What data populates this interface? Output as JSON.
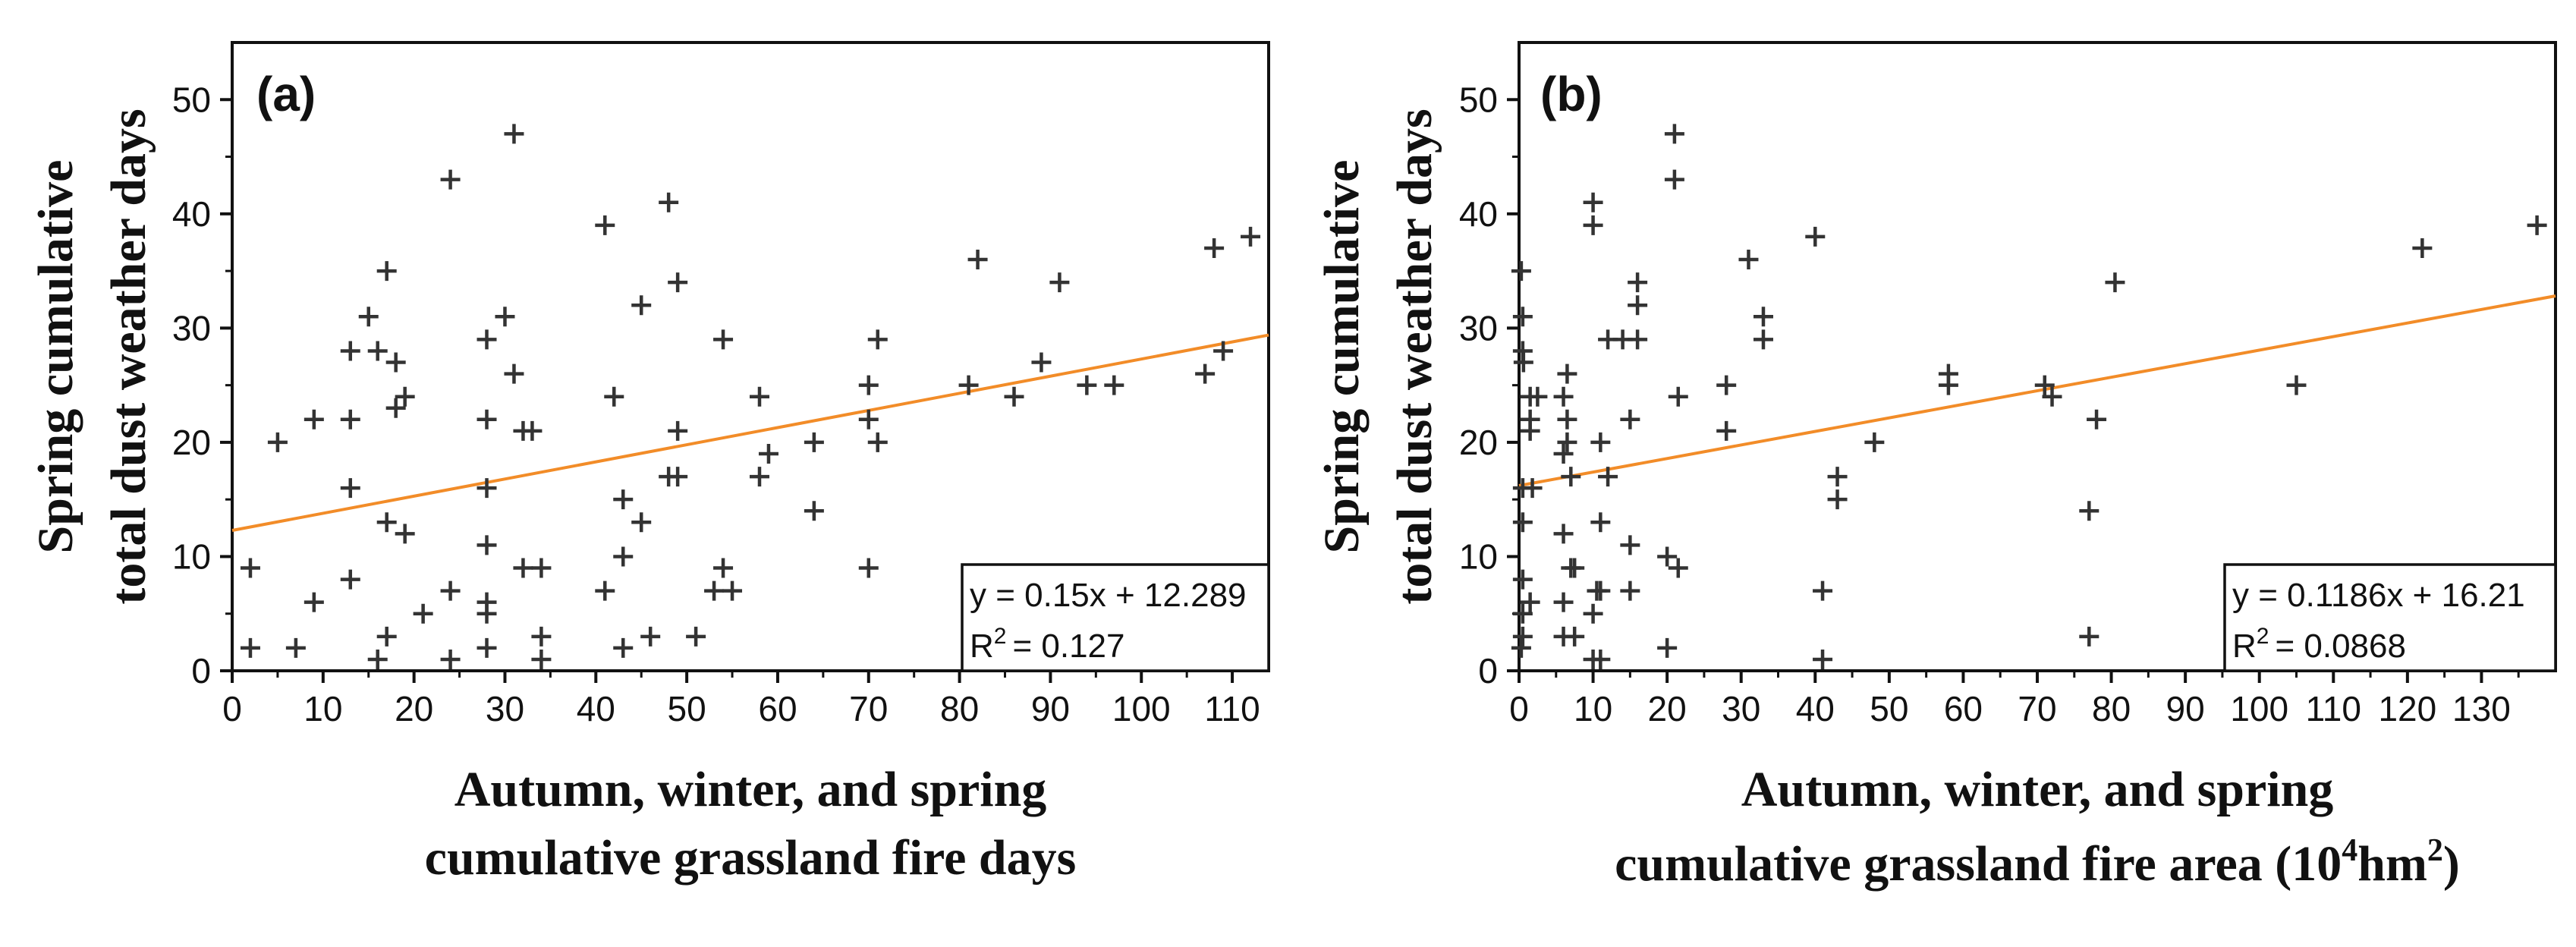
{
  "chart_data": [
    {
      "type": "scatter",
      "panel_label": "(a)",
      "title": "",
      "xlabel": [
        "Autumn, winter, and spring",
        "cumulative grassland fire days"
      ],
      "ylabel": [
        "Spring cumulative",
        "total dust weather days"
      ],
      "xlim": [
        0,
        114
      ],
      "ylim": [
        0,
        55
      ],
      "xticks": [
        0,
        10,
        20,
        30,
        40,
        50,
        60,
        70,
        80,
        90,
        100,
        110
      ],
      "yticks": [
        0,
        10,
        20,
        30,
        40,
        50
      ],
      "marker": "+",
      "fit_line": {
        "slope": 0.15,
        "intercept": 12.289,
        "x_range": [
          0,
          114
        ],
        "color": "#f28c28"
      },
      "equation": {
        "lhs": "y = 0.15x + 12.289",
        "r2_value": "= 0.127",
        "r_label": "R",
        "r_sup": "2"
      },
      "legend_position": "bottom-right",
      "points": [
        [
          2,
          2
        ],
        [
          2,
          9
        ],
        [
          5,
          20
        ],
        [
          7,
          2
        ],
        [
          9,
          22
        ],
        [
          9,
          6
        ],
        [
          13,
          28
        ],
        [
          13,
          22
        ],
        [
          13,
          16
        ],
        [
          13,
          8
        ],
        [
          15,
          31
        ],
        [
          16,
          28
        ],
        [
          16,
          1
        ],
        [
          17,
          35
        ],
        [
          17,
          13
        ],
        [
          17,
          3
        ],
        [
          18,
          27
        ],
        [
          18,
          23
        ],
        [
          19,
          24
        ],
        [
          19,
          12
        ],
        [
          21,
          5
        ],
        [
          24,
          43
        ],
        [
          24,
          7
        ],
        [
          24,
          1
        ],
        [
          28,
          29
        ],
        [
          28,
          22
        ],
        [
          28,
          16
        ],
        [
          28,
          11
        ],
        [
          28,
          6
        ],
        [
          28,
          5
        ],
        [
          28,
          2
        ],
        [
          30,
          31
        ],
        [
          31,
          47
        ],
        [
          31,
          26
        ],
        [
          32,
          21
        ],
        [
          32,
          9
        ],
        [
          33,
          21
        ],
        [
          34,
          9
        ],
        [
          34,
          3
        ],
        [
          34,
          1
        ],
        [
          41,
          39
        ],
        [
          41,
          7
        ],
        [
          42,
          24
        ],
        [
          43,
          15
        ],
        [
          43,
          10
        ],
        [
          43,
          2
        ],
        [
          45,
          32
        ],
        [
          45,
          13
        ],
        [
          46,
          3
        ],
        [
          48,
          41
        ],
        [
          48,
          17
        ],
        [
          49,
          34
        ],
        [
          49,
          21
        ],
        [
          49,
          17
        ],
        [
          51,
          3
        ],
        [
          53,
          7
        ],
        [
          54,
          29
        ],
        [
          54,
          9
        ],
        [
          55,
          7
        ],
        [
          58,
          24
        ],
        [
          58,
          17
        ],
        [
          59,
          19
        ],
        [
          64,
          20
        ],
        [
          64,
          14
        ],
        [
          70,
          25
        ],
        [
          70,
          22
        ],
        [
          70,
          9
        ],
        [
          71,
          29
        ],
        [
          71,
          20
        ],
        [
          81,
          25
        ],
        [
          82,
          36
        ],
        [
          86,
          24
        ],
        [
          89,
          27
        ],
        [
          91,
          34
        ],
        [
          94,
          25
        ],
        [
          97,
          25
        ],
        [
          107,
          26
        ],
        [
          108,
          37
        ],
        [
          109,
          28
        ],
        [
          112,
          38
        ]
      ]
    },
    {
      "type": "scatter",
      "panel_label": "(b)",
      "title": "",
      "xlabel": [
        "Autumn, winter, and spring",
        "cumulative grassland fire area (10",
        "4",
        "hm",
        "2",
        ")"
      ],
      "ylabel": [
        "Spring cumulative",
        "total dust weather days"
      ],
      "xlim": [
        0,
        140
      ],
      "ylim": [
        0,
        55
      ],
      "xticks": [
        0,
        10,
        20,
        30,
        40,
        50,
        60,
        70,
        80,
        90,
        100,
        110,
        120,
        130
      ],
      "yticks": [
        0,
        10,
        20,
        30,
        40,
        50
      ],
      "marker": "+",
      "fit_line": {
        "slope": 0.1186,
        "intercept": 16.21,
        "x_range": [
          0,
          140
        ],
        "color": "#f28c28"
      },
      "equation": {
        "lhs": "y = 0.1186x + 16.21",
        "r2_value": "= 0.0868",
        "r_label": "R",
        "r_sup": "2"
      },
      "legend_position": "bottom-right",
      "points": [
        [
          0.3,
          35
        ],
        [
          0.5,
          31
        ],
        [
          0.5,
          28
        ],
        [
          0.6,
          27
        ],
        [
          0.5,
          16
        ],
        [
          0.5,
          13
        ],
        [
          0.5,
          8
        ],
        [
          0.5,
          5
        ],
        [
          0.5,
          3
        ],
        [
          0.3,
          2
        ],
        [
          1.5,
          24
        ],
        [
          1.5,
          22
        ],
        [
          1.5,
          21
        ],
        [
          1.8,
          16
        ],
        [
          1.5,
          6
        ],
        [
          2.5,
          24
        ],
        [
          6,
          24
        ],
        [
          6,
          19
        ],
        [
          6,
          12
        ],
        [
          6,
          6
        ],
        [
          6,
          3
        ],
        [
          6.5,
          26
        ],
        [
          6.5,
          22
        ],
        [
          6.5,
          20
        ],
        [
          7,
          17
        ],
        [
          7,
          9
        ],
        [
          7.5,
          3
        ],
        [
          7.5,
          9
        ],
        [
          10,
          41
        ],
        [
          10,
          39
        ],
        [
          10,
          1
        ],
        [
          10,
          5
        ],
        [
          10.5,
          7
        ],
        [
          11,
          20
        ],
        [
          11,
          13
        ],
        [
          11,
          7
        ],
        [
          11,
          1
        ],
        [
          12,
          29
        ],
        [
          12,
          17
        ],
        [
          14,
          29
        ],
        [
          15,
          22
        ],
        [
          15,
          11
        ],
        [
          15,
          7
        ],
        [
          16,
          34
        ],
        [
          16,
          32
        ],
        [
          16,
          29
        ],
        [
          20,
          10
        ],
        [
          20,
          2
        ],
        [
          21,
          47
        ],
        [
          21,
          43
        ],
        [
          21.5,
          24
        ],
        [
          21.5,
          9
        ],
        [
          28,
          25
        ],
        [
          28,
          21
        ],
        [
          31,
          36
        ],
        [
          33,
          31
        ],
        [
          33,
          29
        ],
        [
          40,
          38
        ],
        [
          41,
          7
        ],
        [
          41,
          1
        ],
        [
          43,
          17
        ],
        [
          43,
          15
        ],
        [
          48,
          20
        ],
        [
          58,
          26
        ],
        [
          58,
          25
        ],
        [
          71,
          25
        ],
        [
          72,
          24
        ],
        [
          77,
          14
        ],
        [
          77,
          3
        ],
        [
          78,
          22
        ],
        [
          80.5,
          34
        ],
        [
          105,
          25
        ],
        [
          122,
          37
        ],
        [
          137.5,
          39
        ]
      ]
    }
  ]
}
